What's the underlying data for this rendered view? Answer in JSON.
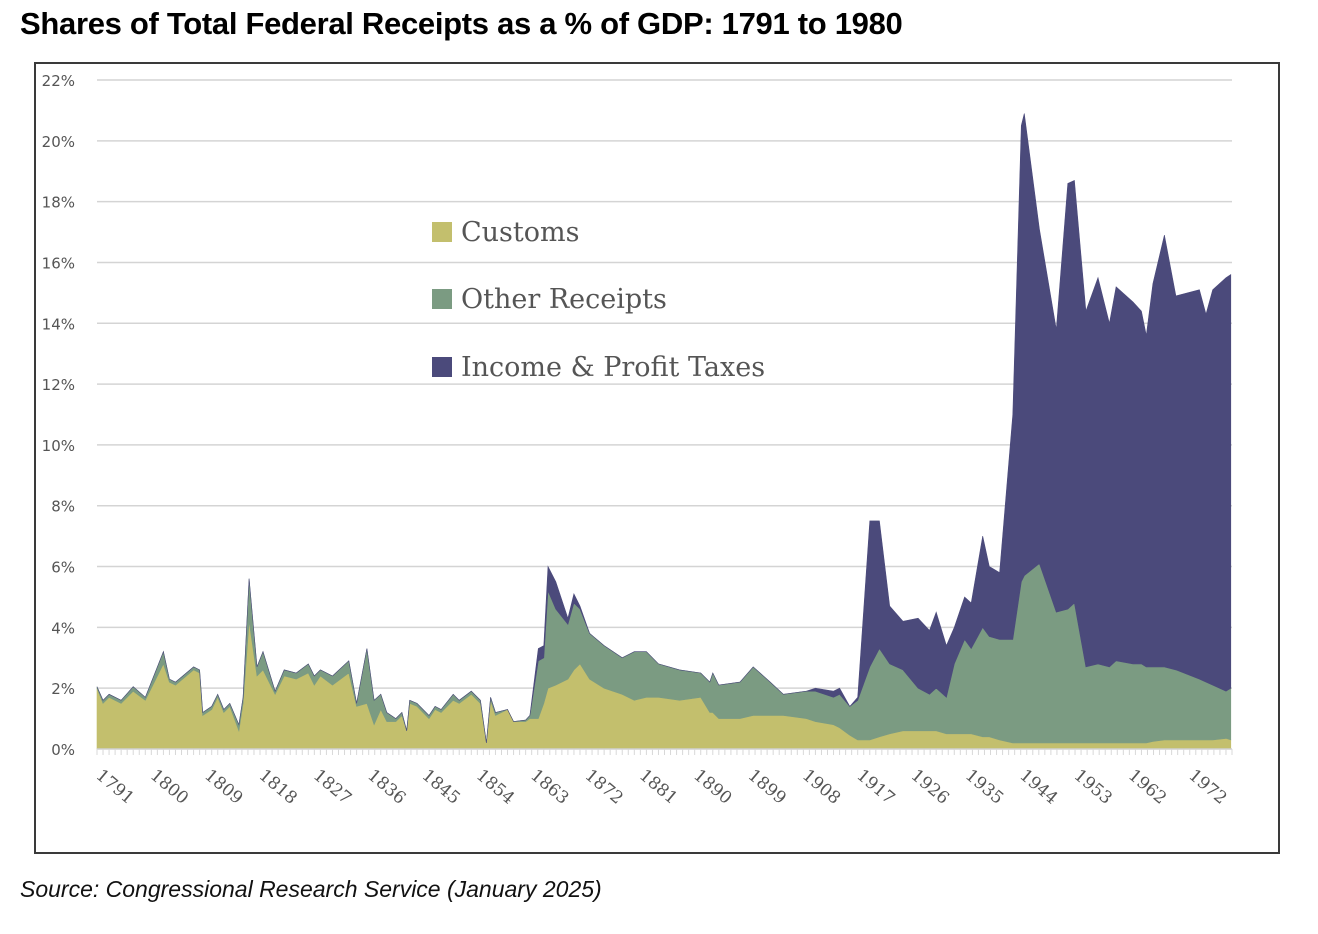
{
  "title": "Shares of Total Federal Receipts as a % of GDP: 1791 to 1980",
  "source": "Source: Congressional Research Service (January 2025)",
  "chart_data": {
    "type": "area",
    "stacked": true,
    "title": "Shares of Total Federal Receipts as a % of GDP: 1791 to 1980",
    "xlabel": "",
    "ylabel": "",
    "xlim": [
      1791,
      1979
    ],
    "ylim": [
      0,
      22
    ],
    "grid": true,
    "legend_position": "top-center",
    "y_ticks": [
      0,
      2,
      4,
      6,
      8,
      10,
      12,
      14,
      16,
      18,
      20,
      22
    ],
    "y_tick_labels": [
      "0%",
      "2%",
      "4%",
      "6%",
      "8%",
      "10%",
      "12%",
      "14%",
      "16%",
      "18%",
      "20%",
      "22%"
    ],
    "x_tick_labels": [
      "1791",
      "1800",
      "1809",
      "1818",
      "1827",
      "1836",
      "1845",
      "1854",
      "1863",
      "1872",
      "1881",
      "1890",
      "1899",
      "1908",
      "1917",
      "1926",
      "1935",
      "1944",
      "1953",
      "1962",
      "1972"
    ],
    "series_names": [
      "Customs",
      "Other Receipts",
      "Income & Profit Taxes"
    ],
    "colors": {
      "Customs": "#c3bf6d",
      "Other Receipts": "#7b9b82",
      "Income & Profit Taxes": "#4b4a7b"
    },
    "x": [
      1791,
      1792,
      1793,
      1795,
      1797,
      1799,
      1801,
      1802,
      1803,
      1804,
      1807,
      1808,
      1808.5,
      1810,
      1811,
      1812,
      1813,
      1814.5,
      1815.2,
      1816.2,
      1817.5,
      1818.5,
      1820.5,
      1822,
      1824,
      1826,
      1827,
      1828,
      1830,
      1832.7,
      1834,
      1835.7,
      1836.9,
      1838,
      1839,
      1840.5,
      1841.5,
      1842.3,
      1842.8,
      1844,
      1846,
      1847,
      1848,
      1850,
      1851,
      1853,
      1854.5,
      1855.5,
      1856.2,
      1857,
      1859,
      1860,
      1862,
      1862.7,
      1864.1,
      1865,
      1865.7,
      1867,
      1869,
      1870,
      1871,
      1872.6,
      1875,
      1878,
      1880,
      1882,
      1884,
      1887.5,
      1891,
      1892.5,
      1893,
      1894,
      1897.5,
      1899.7,
      1902.5,
      1904.7,
      1908.5,
      1910,
      1913,
      1914,
      1915.7,
      1917,
      1919,
      1920.6,
      1922.3,
      1924.5,
      1927,
      1928.9,
      1930,
      1931.7,
      1933,
      1934.7,
      1935.8,
      1937.7,
      1938.8,
      1940.5,
      1942.7,
      1944.1,
      1944.6,
      1947.1,
      1949.9,
      1951.8,
      1952.9,
      1954.8,
      1956.8,
      1958.7,
      1959.8,
      1962.6,
      1964,
      1964.8,
      1965.9,
      1967.8,
      1969.7,
      1973.6,
      1974.7,
      1975.8,
      1978,
      1978.8
    ],
    "series": [
      {
        "name": "Customs",
        "values": [
          2.0,
          1.5,
          1.7,
          1.5,
          1.9,
          1.6,
          2.4,
          2.8,
          2.2,
          2.1,
          2.6,
          2.5,
          1.1,
          1.3,
          1.7,
          1.2,
          1.4,
          0.6,
          1.5,
          4.2,
          2.4,
          2.6,
          1.8,
          2.4,
          2.3,
          2.5,
          2.1,
          2.4,
          2.1,
          2.5,
          1.4,
          1.5,
          0.8,
          1.3,
          0.9,
          0.9,
          1.1,
          0.6,
          1.5,
          1.4,
          1.0,
          1.3,
          1.2,
          1.6,
          1.5,
          1.8,
          1.5,
          0.2,
          1.6,
          1.1,
          1.3,
          0.9,
          0.9,
          1.0,
          1.0,
          1.5,
          2.0,
          2.1,
          2.3,
          2.6,
          2.8,
          2.3,
          2.0,
          1.8,
          1.6,
          1.7,
          1.7,
          1.6,
          1.7,
          1.2,
          1.2,
          1.0,
          1.0,
          1.1,
          1.1,
          1.1,
          1.0,
          0.9,
          0.8,
          0.7,
          0.45,
          0.3,
          0.3,
          0.4,
          0.5,
          0.6,
          0.6,
          0.6,
          0.6,
          0.5,
          0.5,
          0.5,
          0.5,
          0.4,
          0.4,
          0.3,
          0.2,
          0.2,
          0.2,
          0.2,
          0.2,
          0.2,
          0.2,
          0.2,
          0.2,
          0.2,
          0.2,
          0.2,
          0.2,
          0.2,
          0.25,
          0.3,
          0.3,
          0.3,
          0.3,
          0.3,
          0.35,
          0.3
        ]
      },
      {
        "name": "Other Receipts",
        "values": [
          0.05,
          0.1,
          0.1,
          0.1,
          0.15,
          0.1,
          0.3,
          0.4,
          0.1,
          0.1,
          0.1,
          0.1,
          0.1,
          0.1,
          0.1,
          0.1,
          0.1,
          0.2,
          0.2,
          1.4,
          0.3,
          0.6,
          0.1,
          0.2,
          0.2,
          0.3,
          0.3,
          0.2,
          0.3,
          0.4,
          0.1,
          1.8,
          0.8,
          0.5,
          0.3,
          0.1,
          0.1,
          0,
          0.1,
          0.1,
          0.1,
          0.1,
          0.1,
          0.2,
          0.1,
          0.1,
          0.1,
          0,
          0.1,
          0.1,
          0,
          0,
          0.05,
          0.1,
          1.9,
          1.5,
          3.2,
          2.5,
          1.8,
          2.2,
          1.8,
          1.5,
          1.4,
          1.2,
          1.6,
          1.5,
          1.1,
          1.0,
          0.8,
          1.0,
          1.3,
          1.1,
          1.2,
          1.6,
          1.1,
          0.7,
          0.9,
          1.0,
          0.9,
          1.1,
          0.95,
          1.3,
          2.4,
          2.9,
          2.3,
          2.0,
          1.4,
          1.2,
          1.4,
          1.2,
          2.3,
          3.1,
          2.8,
          3.6,
          3.3,
          3.3,
          3.4,
          5.3,
          5.5,
          5.9,
          4.3,
          4.4,
          4.6,
          2.5,
          2.6,
          2.5,
          2.7,
          2.6,
          2.6,
          2.5,
          2.45,
          2.4,
          2.3,
          2.0,
          1.9,
          1.8,
          1.55,
          1.7
        ]
      },
      {
        "name": "Income & Profit Taxes",
        "values": [
          0,
          0,
          0,
          0,
          0,
          0,
          0,
          0,
          0,
          0,
          0,
          0,
          0,
          0,
          0,
          0,
          0,
          0,
          0,
          0,
          0,
          0,
          0,
          0,
          0,
          0,
          0,
          0,
          0,
          0,
          0,
          0,
          0,
          0,
          0,
          0,
          0,
          0,
          0,
          0,
          0,
          0,
          0,
          0,
          0,
          0,
          0,
          0,
          0,
          0,
          0,
          0,
          0,
          0,
          0.4,
          0.4,
          0.8,
          0.9,
          0.2,
          0.3,
          0.1,
          0,
          0,
          0,
          0,
          0,
          0,
          0,
          0,
          0,
          0,
          0,
          0,
          0,
          0,
          0,
          0,
          0.1,
          0.2,
          0.2,
          0,
          0.1,
          4.8,
          4.2,
          1.9,
          1.6,
          2.3,
          2.1,
          2.5,
          1.7,
          1.2,
          1.4,
          1.5,
          3.0,
          2.3,
          2.2,
          7.4,
          15.0,
          15.2,
          11.0,
          9.3,
          14.0,
          13.9,
          11.7,
          12.7,
          11.3,
          12.3,
          11.9,
          11.6,
          10.9,
          12.6,
          14.2,
          12.3,
          12.8,
          12.1,
          13.0,
          13.6,
          13.6
        ]
      }
    ]
  }
}
